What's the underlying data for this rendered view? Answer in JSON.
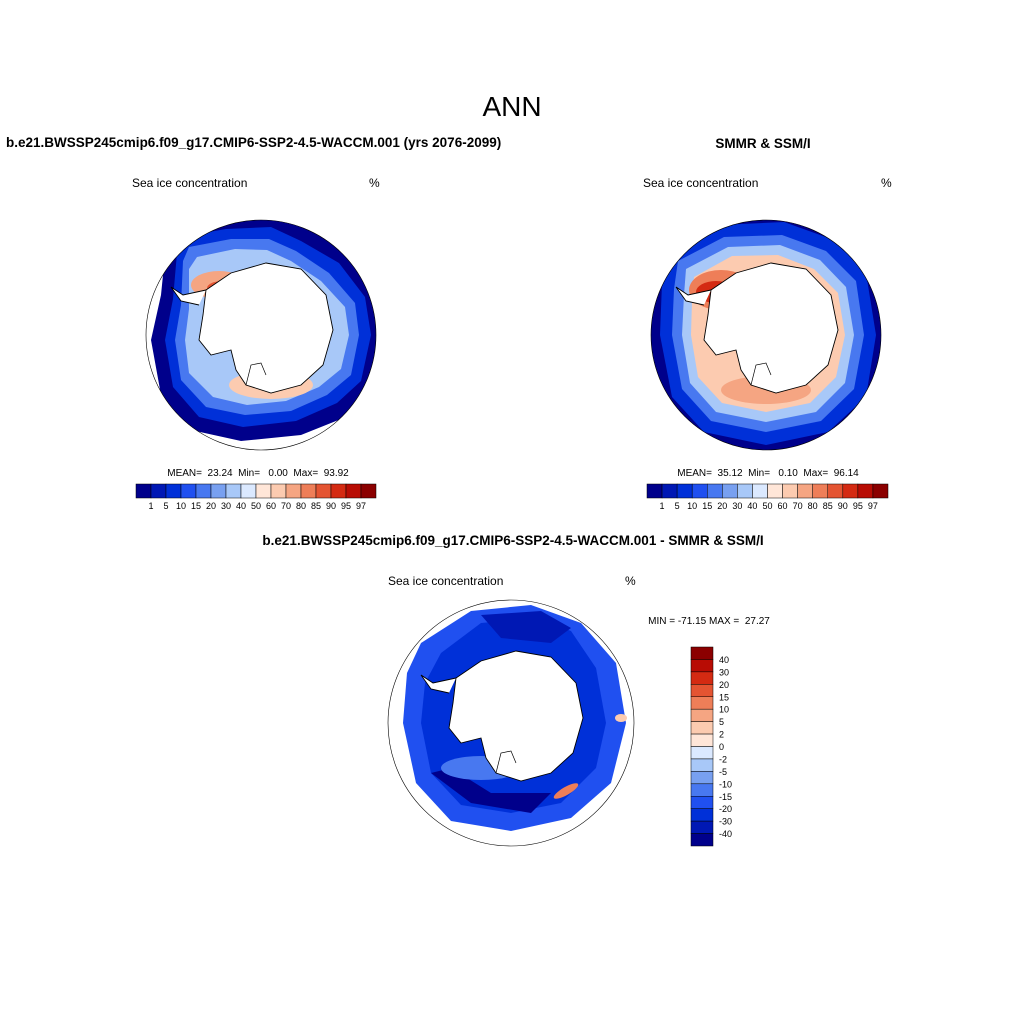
{
  "figure": {
    "title": "ANN",
    "diff_title": "b.e21.BWSSP245cmip6.f09_g17.CMIP6-SSP2-4.5-WACCM.001 - SMMR & SSM/I"
  },
  "panels": [
    {
      "title": "b.e21.BWSSP245cmip6.f09_g17.CMIP6-SSP2-4.5-WACCM.001 (yrs 2076-2099)",
      "variable": "Sea ice concentration",
      "units": "%",
      "stats": "MEAN=  23.24  Min=   0.00  Max=  93.92"
    },
    {
      "title": "SMMR & SSM/I",
      "variable": "Sea ice concentration",
      "units": "%",
      "stats": "MEAN=  35.12  Min=   0.10  Max=  96.14"
    },
    {
      "variable": "Sea ice concentration",
      "units": "%",
      "stats": "MIN = -71.15 MAX =  27.27"
    }
  ],
  "colorbar_main": {
    "labels": [
      "1",
      "5",
      "10",
      "15",
      "20",
      "30",
      "40",
      "50",
      "60",
      "70",
      "80",
      "85",
      "90",
      "95",
      "97"
    ],
    "colors": [
      "#00008b",
      "#0018b4",
      "#0030d8",
      "#2050f0",
      "#4878f0",
      "#78a0f0",
      "#a8c8f8",
      "#dbe9ff",
      "#ffe6d8",
      "#fccbb0",
      "#f5a582",
      "#ee7e58",
      "#e45432",
      "#d42a12",
      "#b80c04",
      "#8b0000"
    ]
  },
  "colorbar_diff": {
    "labels": [
      "40",
      "30",
      "20",
      "15",
      "10",
      "5",
      "2",
      "0",
      "-2",
      "-5",
      "-10",
      "-15",
      "-20",
      "-30",
      "-40"
    ],
    "colors": [
      "#8b0000",
      "#b80c04",
      "#d42a12",
      "#e45432",
      "#ee7e58",
      "#f5a582",
      "#fccbb0",
      "#ffe6d8",
      "#dbe9ff",
      "#a8c8f8",
      "#78a0f0",
      "#4878f0",
      "#2050f0",
      "#0030d8",
      "#0018b4",
      "#00008b"
    ]
  }
}
